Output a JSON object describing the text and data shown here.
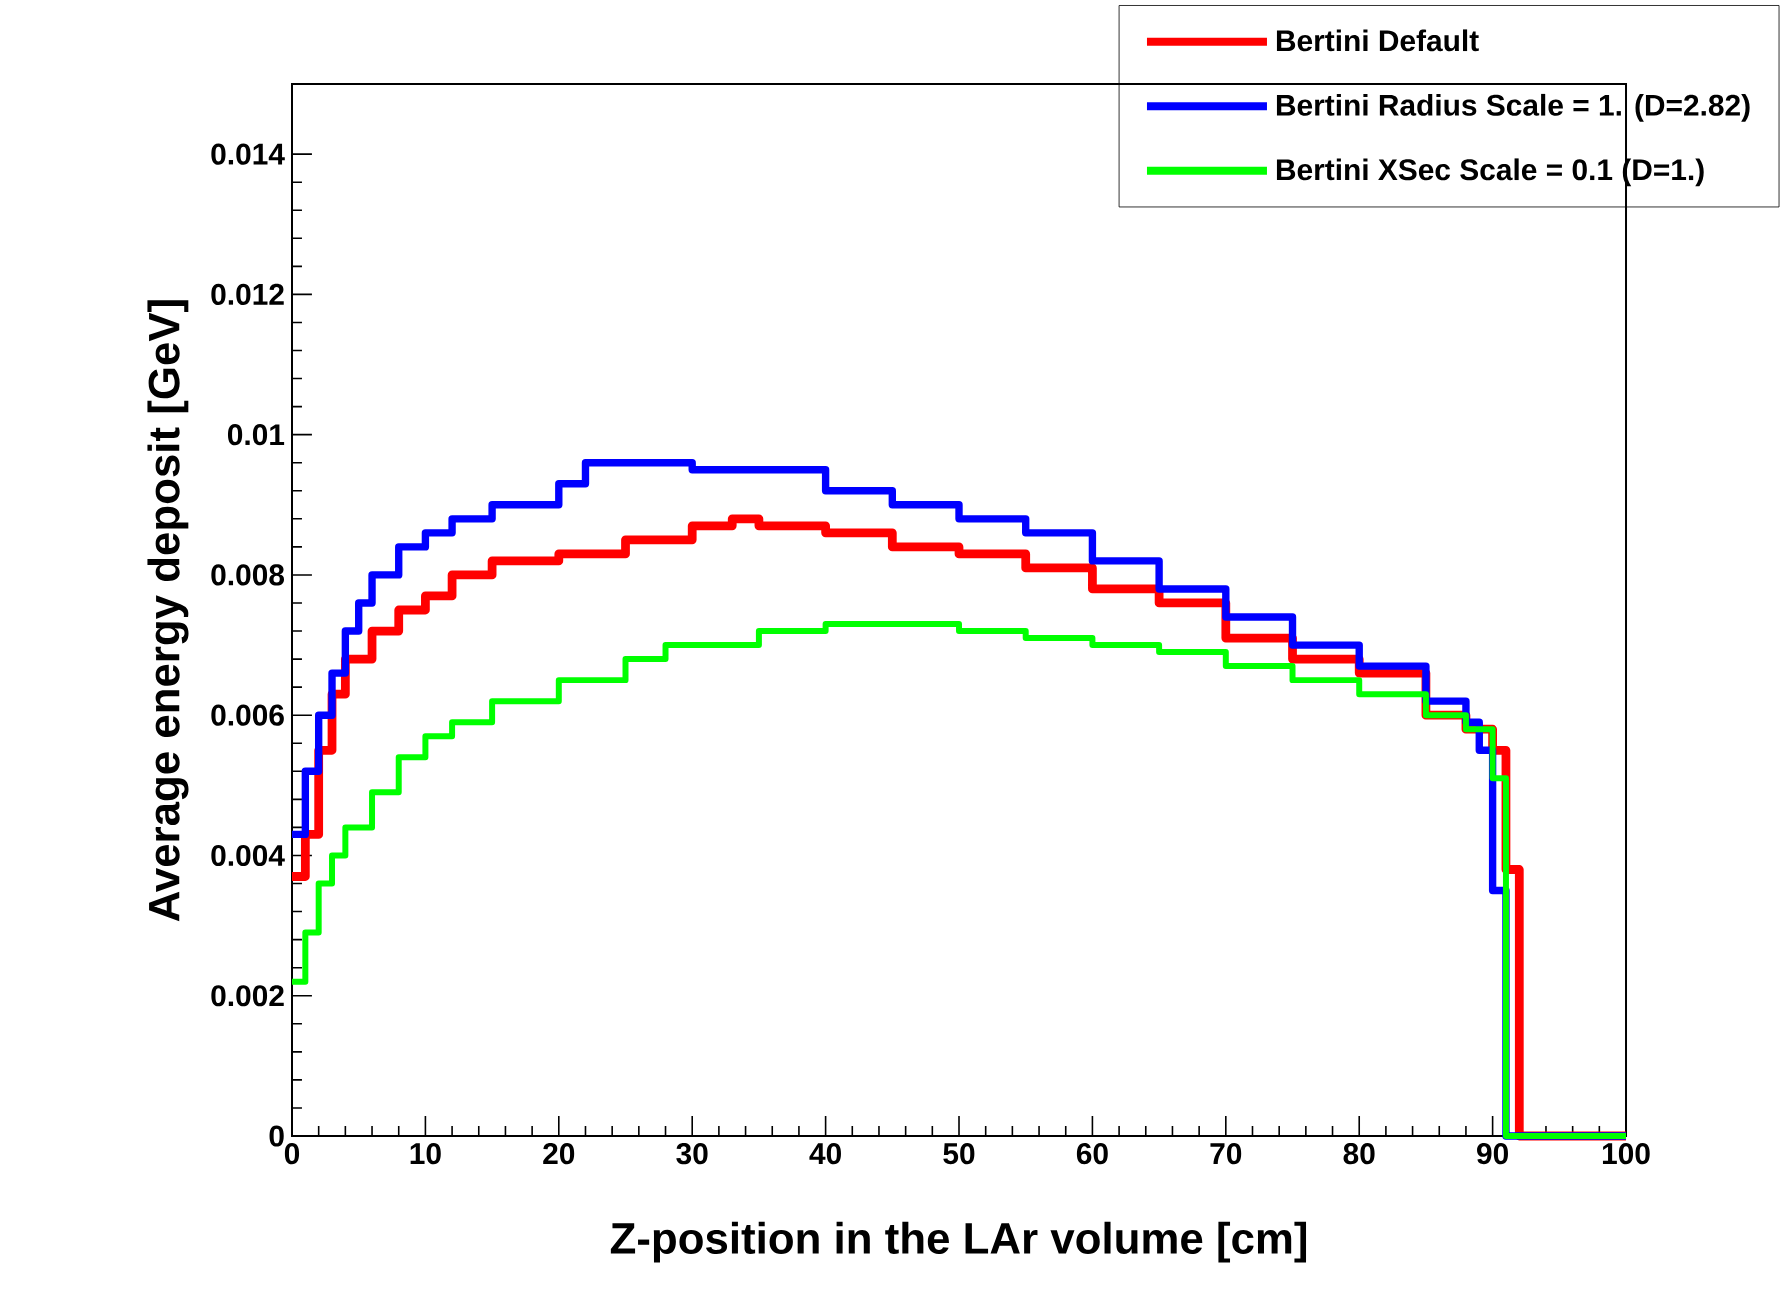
{
  "chart_data": {
    "type": "step",
    "xlabel": "Z-position in the LAr volume [cm]",
    "ylabel": "Average energy deposit [GeV]",
    "xlim": [
      0,
      100
    ],
    "xticks": [
      0,
      10,
      20,
      30,
      40,
      50,
      60,
      70,
      80,
      90,
      100
    ],
    "ylim": [
      0,
      0.015
    ],
    "yticks": [
      0,
      0.002,
      0.004,
      0.006,
      0.008,
      0.01,
      0.012,
      0.014
    ],
    "legend": "top right",
    "grid": false,
    "marker": "none",
    "line_style": "solid",
    "series": [
      {
        "name": "Bertini Default",
        "color": "#ff0000",
        "x": [
          0,
          1,
          2,
          3,
          4,
          6,
          8,
          10,
          12,
          15,
          20,
          25,
          30,
          33,
          35,
          40,
          45,
          50,
          55,
          60,
          65,
          70,
          75,
          80,
          85,
          88,
          90,
          91,
          92,
          100
        ],
        "values": [
          0.0037,
          0.0043,
          0.0055,
          0.0063,
          0.0068,
          0.0072,
          0.0075,
          0.0077,
          0.008,
          0.0082,
          0.0083,
          0.0085,
          0.0087,
          0.0088,
          0.0087,
          0.0086,
          0.0084,
          0.0083,
          0.0081,
          0.0078,
          0.0076,
          0.0071,
          0.0068,
          0.0066,
          0.006,
          0.0058,
          0.0055,
          0.0038,
          0,
          0
        ]
      },
      {
        "name": "Bertini Radius Scale = 1. (D=2.82)",
        "color": "#0000ff",
        "x": [
          0,
          1,
          2,
          3,
          4,
          5,
          6,
          8,
          10,
          12,
          15,
          20,
          22,
          25,
          28,
          30,
          35,
          40,
          45,
          50,
          55,
          60,
          65,
          70,
          75,
          80,
          85,
          88,
          89,
          90,
          91,
          100
        ],
        "values": [
          0.0043,
          0.0052,
          0.006,
          0.0066,
          0.0072,
          0.0076,
          0.008,
          0.0084,
          0.0086,
          0.0088,
          0.009,
          0.0093,
          0.0096,
          0.0096,
          0.0096,
          0.0095,
          0.0095,
          0.0092,
          0.009,
          0.0088,
          0.0086,
          0.0082,
          0.0078,
          0.0074,
          0.007,
          0.0067,
          0.0062,
          0.0059,
          0.0055,
          0.0035,
          0,
          0
        ]
      },
      {
        "name": "Bertini XSec Scale = 0.1 (D=1.)",
        "color": "#00ff00",
        "x": [
          0,
          1,
          2,
          3,
          4,
          6,
          8,
          10,
          12,
          15,
          20,
          25,
          28,
          30,
          35,
          40,
          45,
          50,
          55,
          60,
          65,
          70,
          75,
          80,
          85,
          88,
          90,
          91,
          100
        ],
        "values": [
          0.0022,
          0.0029,
          0.0036,
          0.004,
          0.0044,
          0.0049,
          0.0054,
          0.0057,
          0.0059,
          0.0062,
          0.0065,
          0.0068,
          0.007,
          0.007,
          0.0072,
          0.0073,
          0.0073,
          0.0072,
          0.0071,
          0.007,
          0.0069,
          0.0067,
          0.0065,
          0.0063,
          0.006,
          0.0058,
          0.0051,
          0,
          0
        ]
      }
    ]
  }
}
